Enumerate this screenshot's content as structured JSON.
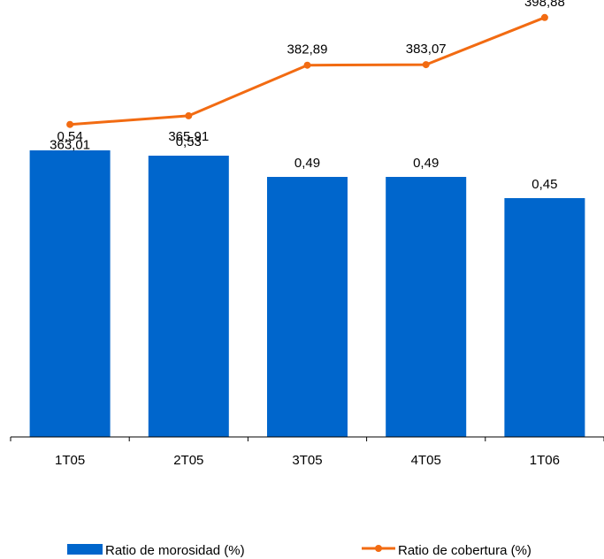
{
  "chart_data": {
    "type": "bar",
    "categories": [
      "1T05",
      "2T05",
      "3T05",
      "4T05",
      "1T06"
    ],
    "series": [
      {
        "name": "Ratio de morosidad (%)",
        "kind": "bar",
        "color": "#0066CC",
        "values": [
          0.54,
          0.53,
          0.49,
          0.49,
          0.45
        ],
        "labels": [
          "0,54",
          "0,53",
          "0,49",
          "0,49",
          "0,45"
        ]
      },
      {
        "name": "Ratio de cobertura (%)",
        "kind": "line",
        "color": "#F26B12",
        "values": [
          363.01,
          365.91,
          382.89,
          383.07,
          398.88
        ],
        "labels": [
          "363,01",
          "365,91",
          "382,89",
          "383,07",
          "398,88"
        ]
      }
    ],
    "bar_axis_range": [
      0,
      0.6
    ],
    "line_axis_range": [
      330,
      400
    ],
    "legend_position": "bottom",
    "grid": false
  }
}
